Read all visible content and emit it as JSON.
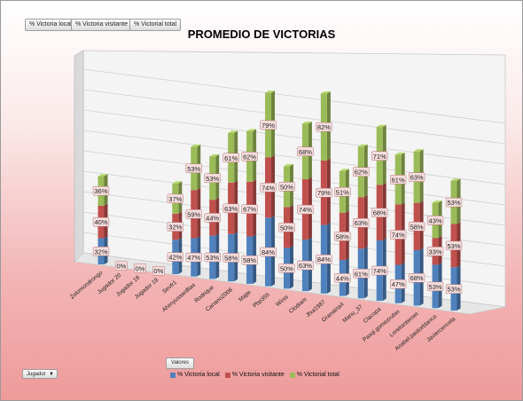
{
  "filters": [
    "% Victoria local",
    "% Victoria visitante",
    "% Victorial total"
  ],
  "field_buttons": {
    "values_label": "Valores",
    "row_field_label": "Jugador"
  },
  "chart_data": {
    "type": "bar",
    "stacked": true,
    "title": "PROMEDIO DE VICTORIAS",
    "categories": [
      "Zolomondrongo",
      "Jugador 20",
      "Jugador 18",
      "Jugador 19",
      "Sevfr1",
      "Alvinyussardlias",
      "Rodrique",
      "Canario2006",
      "Majte",
      "Pbp355",
      "Winsi",
      "Clodiam",
      "Jfxa1987",
      "Granaina4",
      "Manu_37",
      "Clacopa",
      "Pasqi.gomezrubio",
      "Lorelointernet",
      "Anabel.pastorblanco",
      "Javiercencela"
    ],
    "series": [
      {
        "name": "% Victoria local",
        "color": "#4f81bd",
        "values": [
          32,
          0,
          0,
          0,
          42,
          47,
          53,
          58,
          58,
          84,
          50,
          63,
          84,
          44,
          61,
          74,
          47,
          68,
          53,
          53
        ]
      },
      {
        "name": "% Victoria visitante",
        "color": "#c0504d",
        "values": [
          40,
          0,
          0,
          0,
          32,
          59,
          44,
          63,
          67,
          74,
          50,
          74,
          79,
          58,
          63,
          68,
          74,
          58,
          33,
          53
        ]
      },
      {
        "name": "% Victorial total",
        "color": "#9bbb59",
        "values": [
          36,
          0,
          0,
          0,
          37,
          53,
          53,
          61,
          62,
          79,
          50,
          68,
          82,
          51,
          62,
          71,
          61,
          63,
          43,
          53
        ]
      }
    ],
    "value_label_suffix": "%",
    "zero_labels": [
      "0%",
      "0%",
      "0%"
    ],
    "legend_position": "bottom",
    "gridlines": true,
    "three_d": true
  }
}
